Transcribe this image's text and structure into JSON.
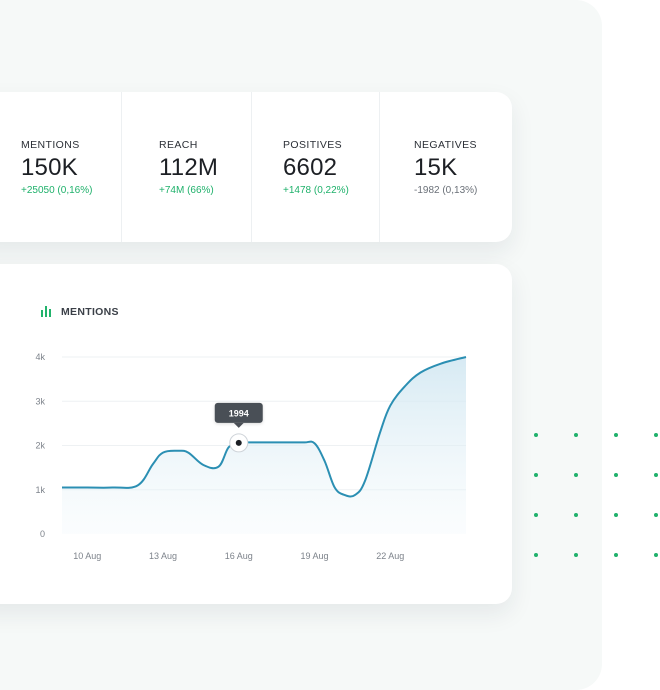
{
  "stats": [
    {
      "label": "MENTIONS",
      "value": "150K",
      "delta": "+25050 (0,16%)",
      "trend": "up"
    },
    {
      "label": "REACH",
      "value": "112M",
      "delta": "+74M (66%)",
      "trend": "up"
    },
    {
      "label": "POSITIVES",
      "value": "6602",
      "delta": "+1478 (0,22%)",
      "trend": "up"
    },
    {
      "label": "NEGATIVES",
      "value": "15K",
      "delta": "-1982 (0,13%)",
      "trend": "down"
    }
  ],
  "colors": {
    "accent_line": "#2b8fb3",
    "positive": "#1fb16b",
    "neutral": "#6a7078",
    "icon_green": "#22b36c",
    "tooltip_bg": "#4a4f56",
    "dots": "#1fb16b"
  },
  "chart_data": {
    "type": "area",
    "title": "MENTIONS",
    "icon": "bar-chart-icon",
    "y_ticks": [
      "0",
      "1k",
      "2k",
      "3k",
      "4k"
    ],
    "ylim": [
      0,
      4000
    ],
    "x_tick_labels": [
      "10 Aug",
      "13 Aug",
      "16 Aug",
      "19 Aug",
      "22 Aug"
    ],
    "x_ticks_day": [
      10,
      13,
      16,
      19,
      22
    ],
    "xlim_day": [
      9,
      25
    ],
    "grid": true,
    "series": [
      {
        "x": [
          9,
          10,
          11,
          12,
          12.6,
          13,
          13.6,
          14,
          14.6,
          15.2,
          15.6,
          16,
          16.4,
          17,
          17.5,
          18,
          18.6,
          19,
          19.4,
          19.8,
          20.2,
          20.6,
          21,
          21.6,
          22,
          22.6,
          23.2,
          24,
          25
        ],
        "y": [
          1050,
          1050,
          1050,
          1100,
          1580,
          1840,
          1880,
          1840,
          1560,
          1520,
          1960,
          2060,
          2070,
          2070,
          2070,
          2070,
          2070,
          2050,
          1650,
          1050,
          880,
          880,
          1200,
          2300,
          2900,
          3350,
          3650,
          3850,
          4000
        ]
      }
    ],
    "highlight": {
      "label": "1994",
      "x": 16.0,
      "y": 2060
    }
  }
}
